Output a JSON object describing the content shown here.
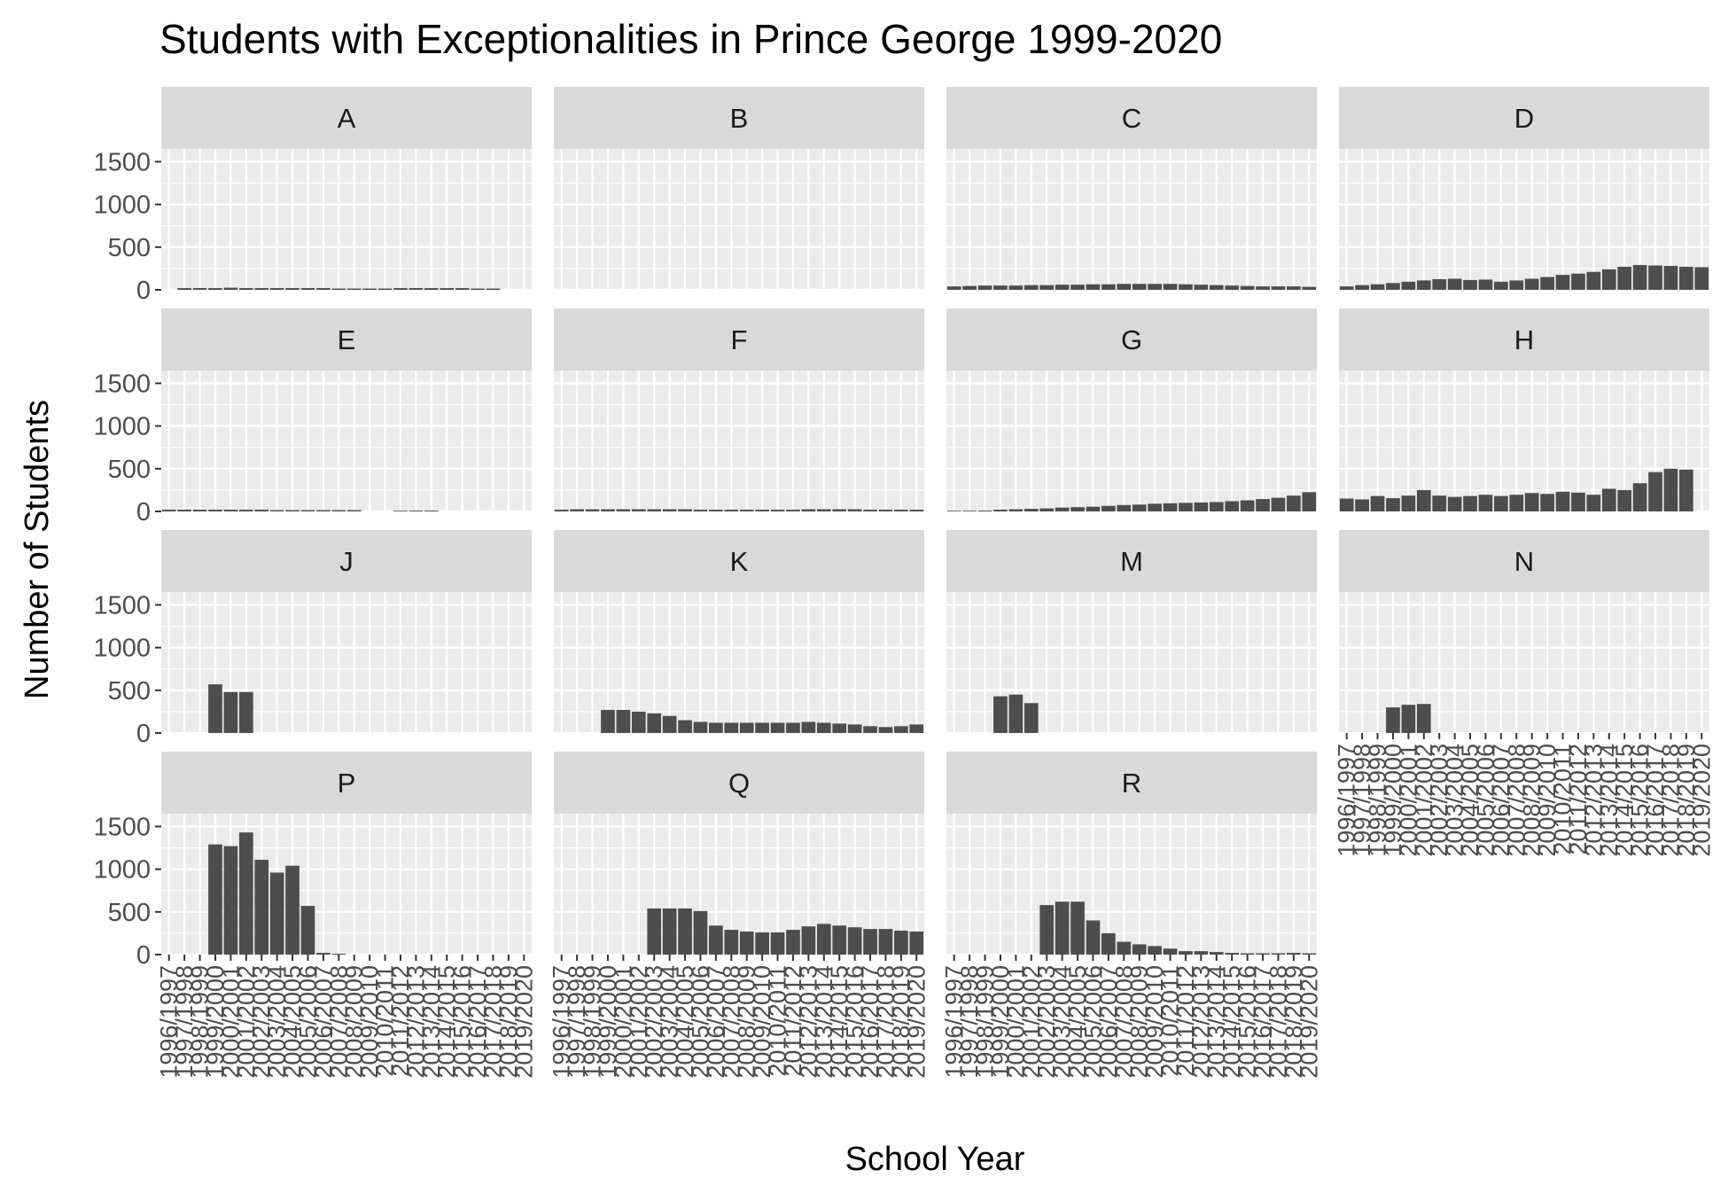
{
  "chart_data": {
    "type": "bar",
    "title": "Students with Exceptionalities in Prince George 1999-2020",
    "xlabel": "School Year",
    "ylabel": "Number of Students",
    "ylim": [
      0,
      1650
    ],
    "yticks": [
      0,
      500,
      1000,
      1500
    ],
    "grid": true,
    "layout": "facet grid 4 columns x 4 rows, shared axes",
    "categories": [
      "1996/1997",
      "1997/1998",
      "1998/1999",
      "1999/2000",
      "2000/2001",
      "2001/2002",
      "2002/2003",
      "2003/2004",
      "2004/2005",
      "2005/2006",
      "2006/2007",
      "2007/2008",
      "2008/2009",
      "2009/2010",
      "2010/2011",
      "2011/2012",
      "2012/2013",
      "2013/2014",
      "2014/2015",
      "2015/2016",
      "2016/2017",
      "2017/2018",
      "2018/2019",
      "2019/2020"
    ],
    "panels": [
      {
        "name": "A",
        "values": [
          null,
          20,
          20,
          20,
          25,
          20,
          20,
          20,
          20,
          20,
          20,
          15,
          15,
          15,
          15,
          20,
          20,
          20,
          20,
          20,
          15,
          15,
          null,
          null
        ]
      },
      {
        "name": "B",
        "values": [
          null,
          null,
          null,
          null,
          null,
          null,
          null,
          null,
          null,
          null,
          null,
          null,
          null,
          null,
          null,
          null,
          null,
          null,
          null,
          null,
          null,
          null,
          null,
          null
        ]
      },
      {
        "name": "C",
        "values": [
          40,
          45,
          50,
          50,
          50,
          55,
          55,
          60,
          60,
          65,
          65,
          70,
          70,
          70,
          70,
          65,
          60,
          55,
          50,
          45,
          40,
          40,
          40,
          35
        ]
      },
      {
        "name": "D",
        "values": [
          40,
          55,
          65,
          80,
          95,
          110,
          125,
          130,
          115,
          120,
          95,
          110,
          130,
          150,
          175,
          190,
          210,
          240,
          270,
          290,
          285,
          280,
          270,
          265
        ]
      },
      {
        "name": "E",
        "values": [
          20,
          20,
          20,
          20,
          20,
          20,
          20,
          15,
          15,
          15,
          15,
          15,
          15,
          null,
          null,
          5,
          10,
          10,
          null,
          null,
          null,
          null,
          null,
          null
        ]
      },
      {
        "name": "F",
        "values": [
          20,
          25,
          25,
          25,
          25,
          25,
          25,
          25,
          25,
          20,
          20,
          20,
          20,
          20,
          20,
          20,
          25,
          25,
          25,
          25,
          20,
          20,
          20,
          20
        ]
      },
      {
        "name": "G",
        "values": [
          5,
          8,
          10,
          20,
          25,
          30,
          35,
          45,
          50,
          55,
          65,
          75,
          80,
          90,
          95,
          100,
          105,
          110,
          120,
          130,
          145,
          160,
          185,
          225
        ]
      },
      {
        "name": "H",
        "values": [
          150,
          140,
          180,
          155,
          185,
          250,
          185,
          170,
          180,
          195,
          180,
          195,
          215,
          205,
          230,
          220,
          195,
          265,
          250,
          330,
          460,
          500,
          490,
          null
        ]
      },
      {
        "name": "J",
        "values": [
          null,
          null,
          null,
          570,
          480,
          480,
          null,
          null,
          null,
          null,
          null,
          null,
          null,
          null,
          null,
          null,
          null,
          null,
          null,
          null,
          null,
          null,
          null,
          null
        ]
      },
      {
        "name": "K",
        "values": [
          null,
          null,
          null,
          270,
          270,
          250,
          230,
          200,
          150,
          130,
          120,
          120,
          120,
          120,
          120,
          120,
          130,
          120,
          110,
          100,
          80,
          70,
          80,
          100
        ]
      },
      {
        "name": "M",
        "values": [
          null,
          null,
          null,
          430,
          450,
          350,
          null,
          null,
          null,
          null,
          null,
          null,
          null,
          null,
          null,
          null,
          null,
          null,
          null,
          null,
          null,
          null,
          null,
          null
        ]
      },
      {
        "name": "N",
        "values": [
          null,
          null,
          null,
          300,
          330,
          340,
          null,
          null,
          null,
          null,
          null,
          null,
          null,
          null,
          null,
          null,
          null,
          null,
          null,
          null,
          null,
          null,
          null,
          null
        ]
      },
      {
        "name": "P",
        "values": [
          null,
          null,
          null,
          1290,
          1270,
          1430,
          1110,
          960,
          1040,
          570,
          20,
          10,
          null,
          null,
          null,
          null,
          null,
          null,
          null,
          null,
          null,
          null,
          null,
          null
        ]
      },
      {
        "name": "Q",
        "values": [
          null,
          null,
          null,
          null,
          null,
          null,
          540,
          540,
          540,
          510,
          340,
          290,
          270,
          260,
          260,
          290,
          330,
          360,
          340,
          320,
          300,
          300,
          280,
          270
        ]
      },
      {
        "name": "R",
        "values": [
          null,
          null,
          null,
          null,
          null,
          null,
          580,
          620,
          620,
          400,
          250,
          150,
          120,
          100,
          70,
          40,
          40,
          30,
          20,
          15,
          15,
          15,
          20,
          15
        ]
      }
    ]
  }
}
